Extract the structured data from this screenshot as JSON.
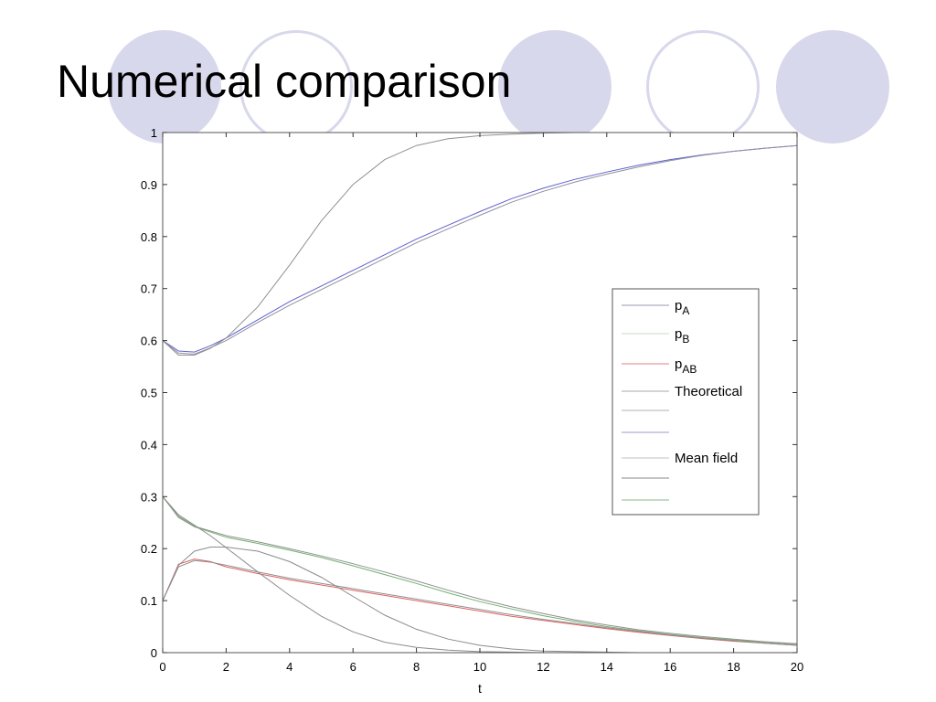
{
  "slide": {
    "title": "Numerical comparison",
    "decor_color": "#d8d8ec"
  },
  "chart_data": {
    "type": "line",
    "title": "",
    "xlabel": "t",
    "ylabel": "",
    "xlim": [
      0,
      20
    ],
    "ylim": [
      0,
      1
    ],
    "xticks": [
      0,
      2,
      4,
      6,
      8,
      10,
      12,
      14,
      16,
      18,
      20
    ],
    "yticks": [
      0,
      0.1,
      0.2,
      0.3,
      0.4,
      0.5,
      0.6,
      0.7,
      0.8,
      0.9,
      1
    ],
    "grid": false,
    "legend_position": "right",
    "legend": [
      {
        "label": "pA",
        "main": "p",
        "sub": "A",
        "color": "#9a9ab0"
      },
      {
        "label": "pB",
        "main": "p",
        "sub": "B",
        "color": "#c8d8c8"
      },
      {
        "label": "pAB",
        "main": "p",
        "sub": "AB",
        "color": "#e08080"
      },
      {
        "label": "Theoretical",
        "main": "Theoretical",
        "sub": "",
        "color": "#a8a8a8"
      },
      {
        "label": "",
        "main": "",
        "sub": "",
        "color": "#b0b0b0"
      },
      {
        "label": "",
        "main": "",
        "sub": "",
        "color": "#9898c8"
      },
      {
        "label": "Mean field",
        "main": "Mean field",
        "sub": "",
        "color": "#c0c0c0"
      },
      {
        "label": "",
        "main": "",
        "sub": "",
        "color": "#888888"
      },
      {
        "label": "",
        "main": "",
        "sub": "",
        "color": "#88b888"
      }
    ],
    "series": [
      {
        "color": "#6060d0",
        "x": [
          0,
          0.5,
          1,
          1.5,
          2,
          3,
          4,
          5,
          6,
          7,
          8,
          9,
          10,
          11,
          12,
          13,
          14,
          15,
          16,
          17,
          18,
          19,
          20
        ],
        "y": [
          0.6,
          0.58,
          0.578,
          0.59,
          0.605,
          0.64,
          0.675,
          0.705,
          0.735,
          0.765,
          0.795,
          0.822,
          0.848,
          0.873,
          0.893,
          0.91,
          0.924,
          0.937,
          0.948,
          0.957,
          0.964,
          0.97,
          0.975
        ]
      },
      {
        "color": "#9090a0",
        "x": [
          0,
          0.5,
          1,
          1.5,
          2,
          3,
          4,
          5,
          6,
          7,
          8,
          9,
          10,
          11,
          12,
          13,
          14,
          15,
          16,
          17,
          18,
          19,
          20
        ],
        "y": [
          0.6,
          0.576,
          0.574,
          0.586,
          0.6,
          0.635,
          0.668,
          0.698,
          0.728,
          0.758,
          0.788,
          0.815,
          0.841,
          0.866,
          0.887,
          0.905,
          0.92,
          0.934,
          0.946,
          0.956,
          0.964,
          0.97,
          0.975
        ]
      },
      {
        "color": "#909090",
        "x": [
          0,
          0.5,
          1,
          1.5,
          2,
          3,
          4,
          5,
          6,
          7,
          8,
          9,
          10,
          11,
          12,
          13,
          14,
          15,
          16,
          17,
          18,
          19,
          20
        ],
        "y": [
          0.6,
          0.572,
          0.572,
          0.585,
          0.605,
          0.665,
          0.745,
          0.83,
          0.9,
          0.948,
          0.975,
          0.988,
          0.994,
          0.997,
          0.999,
          1,
          1,
          1,
          1,
          1,
          1,
          1,
          1
        ]
      },
      {
        "color": "#70b070",
        "x": [
          0,
          0.5,
          1,
          2,
          3,
          4,
          5,
          6,
          7,
          8,
          9,
          10,
          11,
          12,
          13,
          14,
          15,
          16,
          17,
          18,
          19,
          20
        ],
        "y": [
          0.3,
          0.26,
          0.242,
          0.222,
          0.21,
          0.197,
          0.183,
          0.167,
          0.15,
          0.133,
          0.115,
          0.098,
          0.084,
          0.071,
          0.06,
          0.05,
          0.042,
          0.035,
          0.029,
          0.024,
          0.02,
          0.016
        ]
      },
      {
        "color": "#909090",
        "x": [
          0,
          0.5,
          1,
          2,
          3,
          4,
          5,
          6,
          7,
          8,
          9,
          10,
          11,
          12,
          13,
          14,
          15,
          16,
          17,
          18,
          19,
          20
        ],
        "y": [
          0.3,
          0.262,
          0.243,
          0.225,
          0.213,
          0.2,
          0.186,
          0.171,
          0.155,
          0.138,
          0.12,
          0.103,
          0.088,
          0.075,
          0.063,
          0.053,
          0.044,
          0.037,
          0.031,
          0.026,
          0.021,
          0.017
        ]
      },
      {
        "color": "#e06060",
        "x": [
          0,
          0.5,
          1,
          1.5,
          2,
          3,
          4,
          5,
          6,
          7,
          8,
          9,
          10,
          11,
          12,
          13,
          14,
          15,
          16,
          17,
          18,
          19,
          20
        ],
        "y": [
          0.1,
          0.17,
          0.18,
          0.175,
          0.165,
          0.152,
          0.14,
          0.13,
          0.12,
          0.11,
          0.1,
          0.09,
          0.08,
          0.07,
          0.062,
          0.054,
          0.046,
          0.039,
          0.033,
          0.027,
          0.022,
          0.018,
          0.014
        ]
      },
      {
        "color": "#909090",
        "x": [
          0,
          0.5,
          1,
          1.5,
          2,
          3,
          4,
          5,
          6,
          7,
          8,
          9,
          10,
          11,
          12,
          13,
          14,
          15,
          16,
          17,
          18,
          19,
          20
        ],
        "y": [
          0.1,
          0.165,
          0.177,
          0.174,
          0.168,
          0.155,
          0.143,
          0.133,
          0.123,
          0.113,
          0.103,
          0.093,
          0.083,
          0.073,
          0.064,
          0.056,
          0.048,
          0.041,
          0.034,
          0.028,
          0.023,
          0.018,
          0.014
        ]
      },
      {
        "color": "#8c8c8c",
        "x": [
          0,
          0.5,
          1,
          1.5,
          2,
          3,
          4,
          5,
          6,
          7,
          8,
          9,
          10,
          11,
          12,
          13,
          14,
          15,
          16,
          17,
          18,
          19,
          20
        ],
        "y": [
          0.1,
          0.168,
          0.195,
          0.203,
          0.203,
          0.195,
          0.175,
          0.145,
          0.108,
          0.072,
          0.045,
          0.026,
          0.014,
          0.007,
          0.003,
          0.002,
          0.001,
          0,
          0,
          0,
          0,
          0,
          0
        ]
      },
      {
        "color": "#8c8c8c",
        "x": [
          0,
          0.5,
          1,
          1.5,
          2,
          3,
          4,
          5,
          6,
          7,
          8,
          9,
          10,
          11,
          12,
          13,
          14,
          15,
          16,
          17,
          18,
          19,
          20
        ],
        "y": [
          0.3,
          0.265,
          0.245,
          0.225,
          0.202,
          0.155,
          0.11,
          0.07,
          0.04,
          0.02,
          0.01,
          0.005,
          0.002,
          0.001,
          0,
          0,
          0,
          0,
          0,
          0,
          0,
          0,
          0
        ]
      }
    ]
  }
}
